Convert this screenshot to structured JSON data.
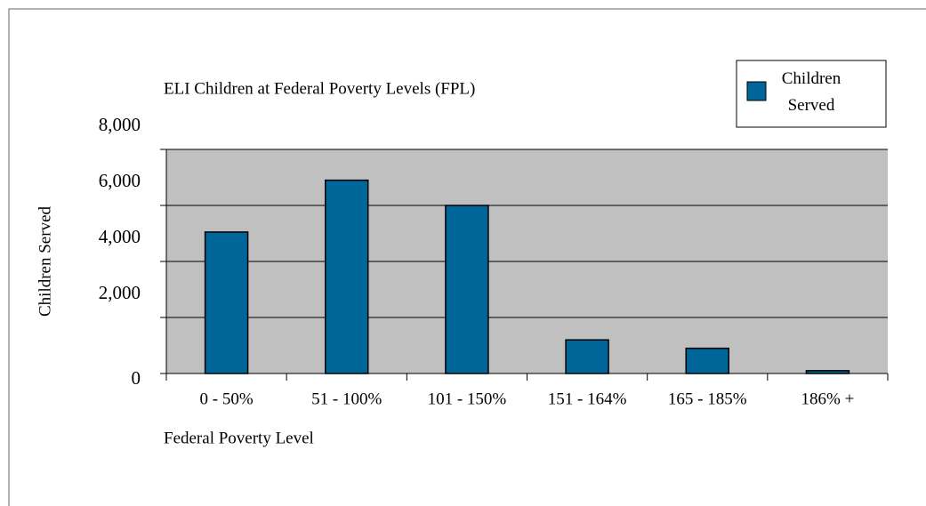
{
  "chart_data": {
    "type": "bar",
    "title": "ELI Children at Federal Poverty Levels (FPL)",
    "x_label": "Federal Poverty Level",
    "y_label": "Children Served",
    "categories": [
      "0 - 50%",
      "51 - 100%",
      "101 - 150%",
      "151 - 164%",
      "165 - 185%",
      "186% +"
    ],
    "series": [
      {
        "name": "Children Served",
        "color": "#006699",
        "values": [
          5050,
          6900,
          6000,
          1200,
          900,
          100
        ]
      }
    ],
    "ylim": [
      0,
      8000
    ],
    "yticks": [
      0,
      {
        "value": 2000,
        "label": "2,000"
      },
      {
        "value": 4000,
        "label": "4,000"
      },
      {
        "value": 6000,
        "label": "6,000"
      },
      {
        "value": 8000,
        "label": "8,000"
      }
    ],
    "grid": true,
    "legend": "top-right",
    "plot_background": "#c0c0c0"
  }
}
